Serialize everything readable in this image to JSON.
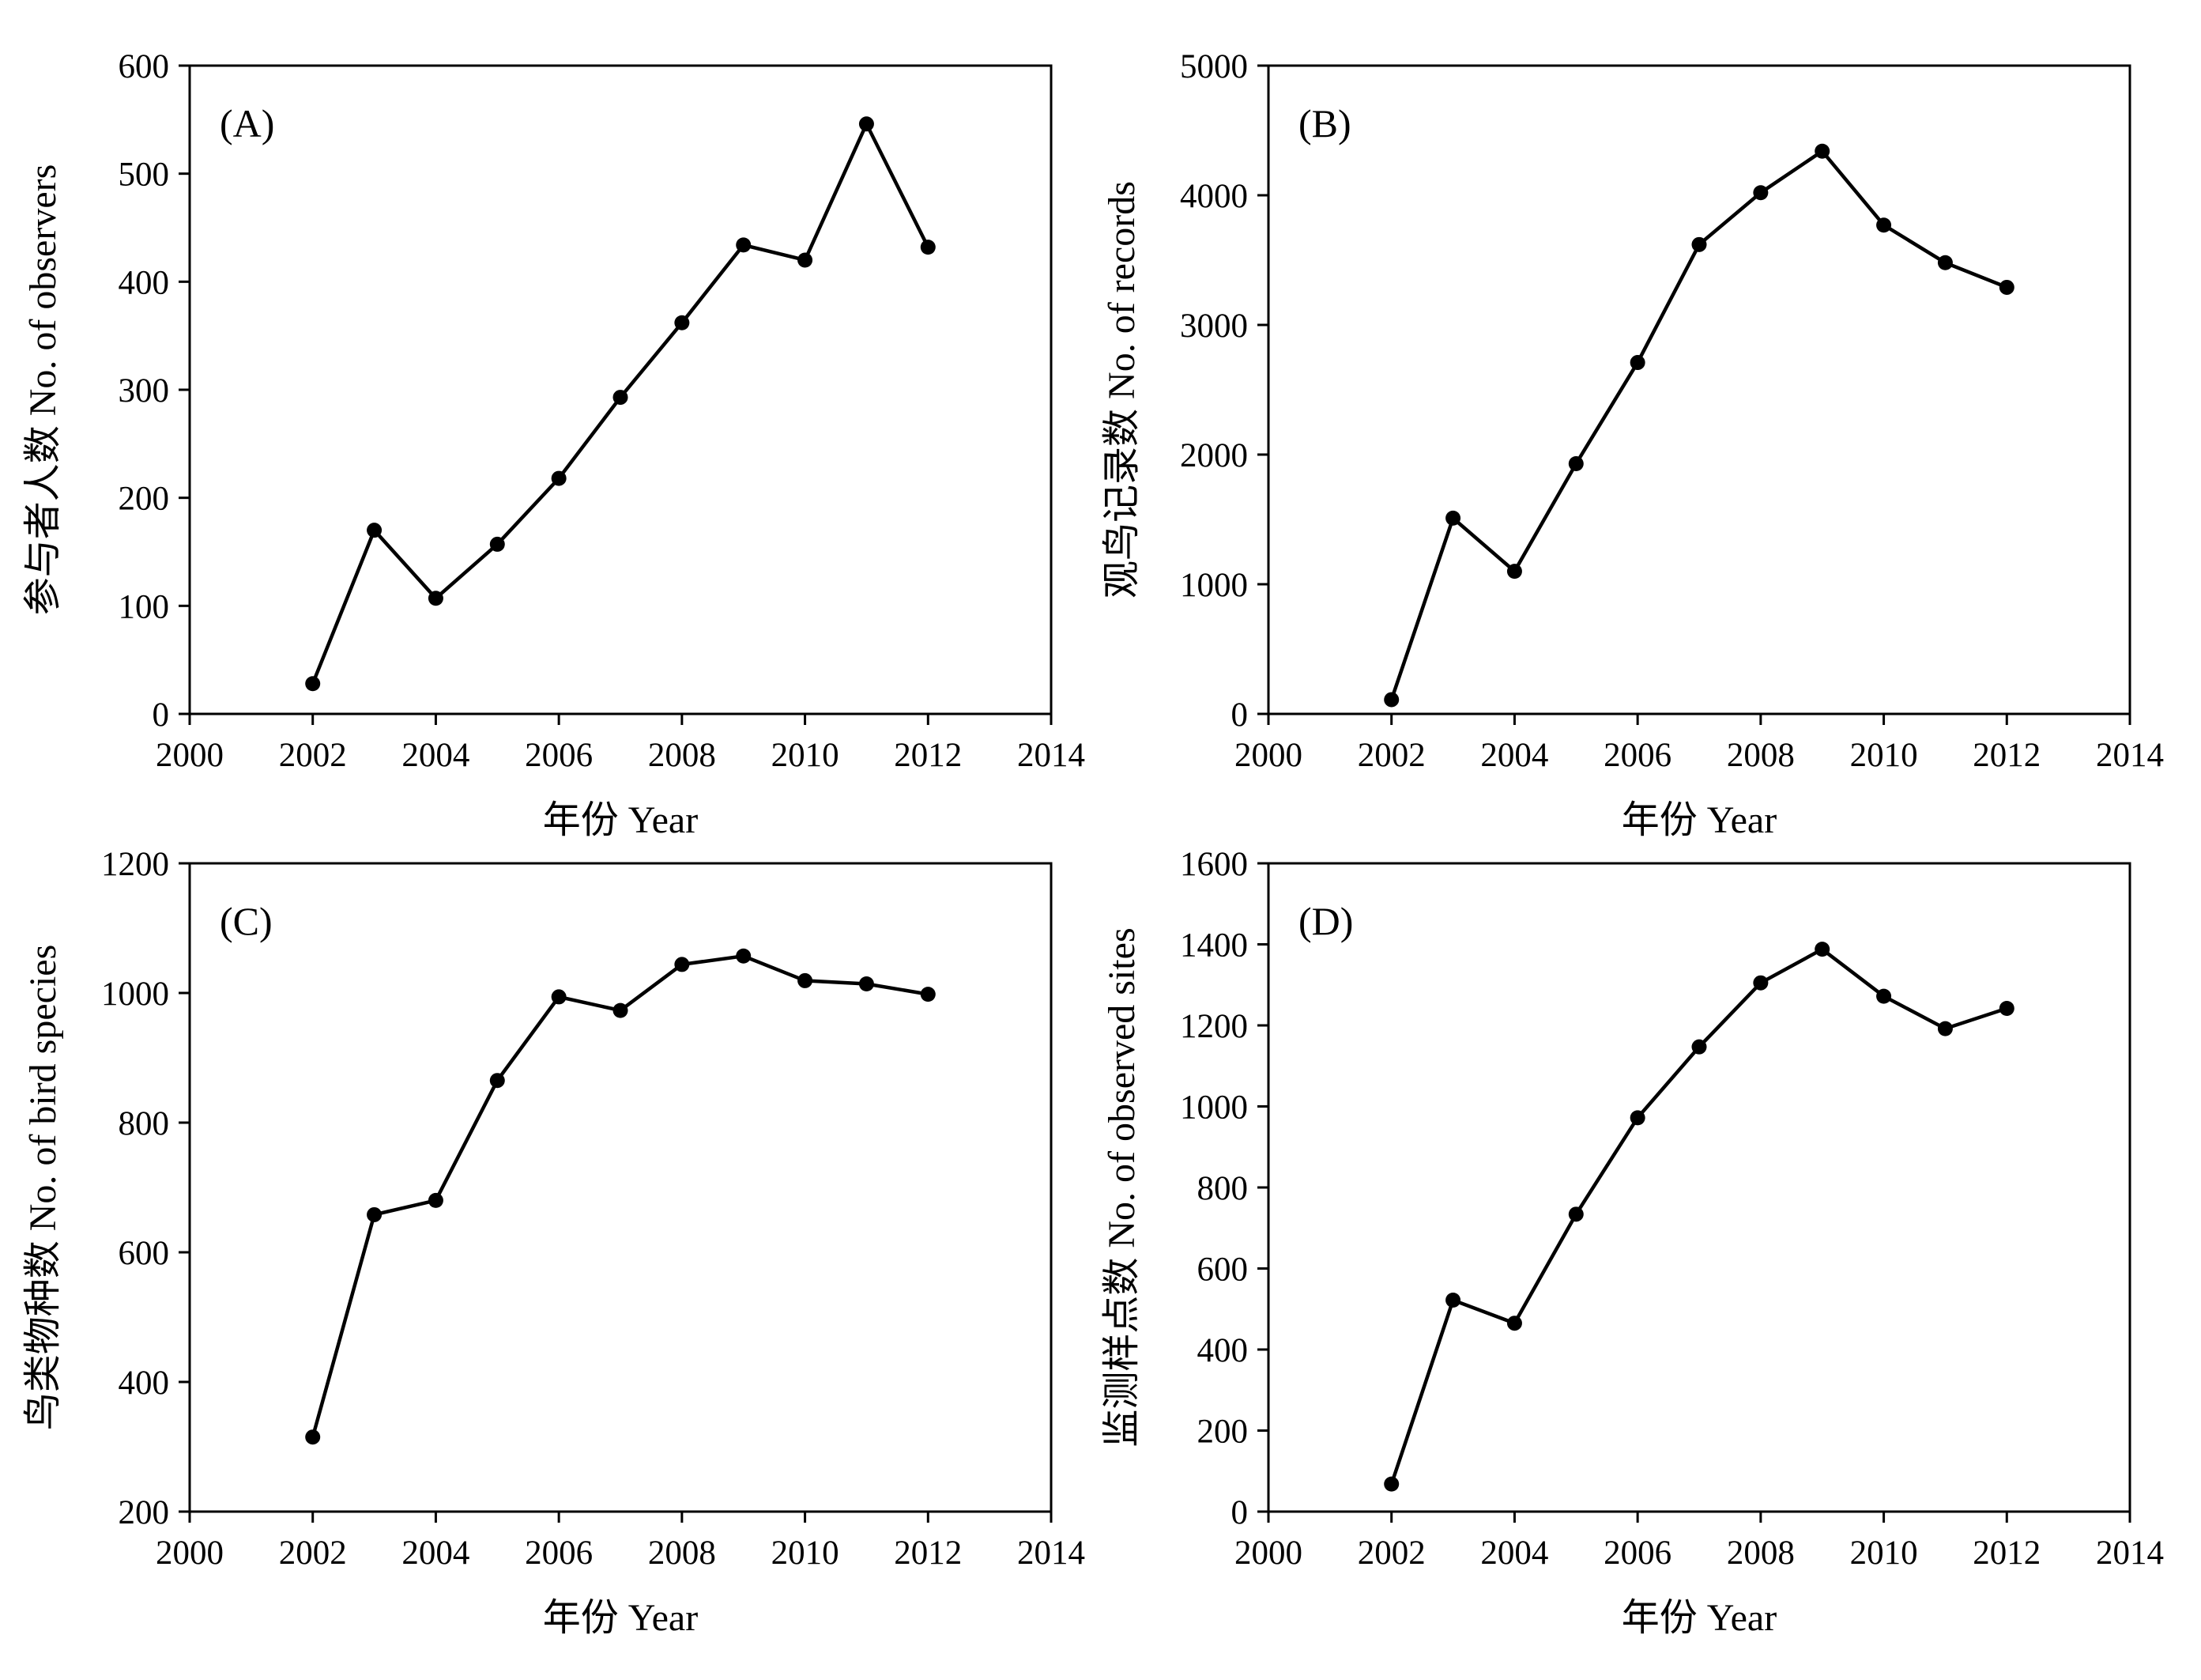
{
  "chart_data": [
    {
      "type": "line",
      "panel_label": "(A)",
      "xlabel": "年份 Year",
      "ylabel": "参与者人数  No. of observers",
      "xlim": [
        2000,
        2014
      ],
      "ylim": [
        0,
        600
      ],
      "xticks": [
        2000,
        2002,
        2004,
        2006,
        2008,
        2010,
        2012,
        2014
      ],
      "yticks": [
        0,
        100,
        200,
        300,
        400,
        500,
        600
      ],
      "x": [
        2002,
        2003,
        2004,
        2005,
        2006,
        2007,
        2008,
        2009,
        2010,
        2011,
        2012
      ],
      "values": [
        28,
        170,
        107,
        157,
        218,
        293,
        362,
        434,
        420,
        546,
        432
      ]
    },
    {
      "type": "line",
      "panel_label": "(B)",
      "xlabel": "年份 Year",
      "ylabel": "观鸟记录数  No. of records",
      "xlim": [
        2000,
        2014
      ],
      "ylim": [
        0,
        5000
      ],
      "xticks": [
        2000,
        2002,
        2004,
        2006,
        2008,
        2010,
        2012,
        2014
      ],
      "yticks": [
        0,
        1000,
        2000,
        3000,
        4000,
        5000
      ],
      "x": [
        2002,
        2003,
        2004,
        2005,
        2006,
        2007,
        2008,
        2009,
        2010,
        2011,
        2012
      ],
      "values": [
        110,
        1510,
        1100,
        1930,
        2710,
        3620,
        4020,
        4340,
        3770,
        3480,
        3290
      ]
    },
    {
      "type": "line",
      "panel_label": "(C)",
      "xlabel": "年份 Year",
      "ylabel": "鸟类物种数  No. of bird species",
      "xlim": [
        2000,
        2014
      ],
      "ylim": [
        200,
        1200
      ],
      "xticks": [
        2000,
        2002,
        2004,
        2006,
        2008,
        2010,
        2012,
        2014
      ],
      "yticks": [
        200,
        400,
        600,
        800,
        1000,
        1200
      ],
      "x": [
        2002,
        2003,
        2004,
        2005,
        2006,
        2007,
        2008,
        2009,
        2010,
        2011,
        2012
      ],
      "values": [
        315,
        658,
        680,
        865,
        994,
        973,
        1044,
        1057,
        1019,
        1014,
        998
      ]
    },
    {
      "type": "line",
      "panel_label": "(D)",
      "xlabel": "年份 Year",
      "ylabel": "监测样点数 No. of observed sites",
      "xlim": [
        2000,
        2014
      ],
      "ylim": [
        0,
        1600
      ],
      "xticks": [
        2000,
        2002,
        2004,
        2006,
        2008,
        2010,
        2012,
        2014
      ],
      "yticks": [
        0,
        200,
        400,
        600,
        800,
        1000,
        1200,
        1400,
        1600
      ],
      "x": [
        2002,
        2003,
        2004,
        2005,
        2006,
        2007,
        2008,
        2009,
        2010,
        2011,
        2012
      ],
      "values": [
        68,
        522,
        465,
        734,
        972,
        1147,
        1305,
        1388,
        1272,
        1192,
        1242
      ]
    }
  ]
}
